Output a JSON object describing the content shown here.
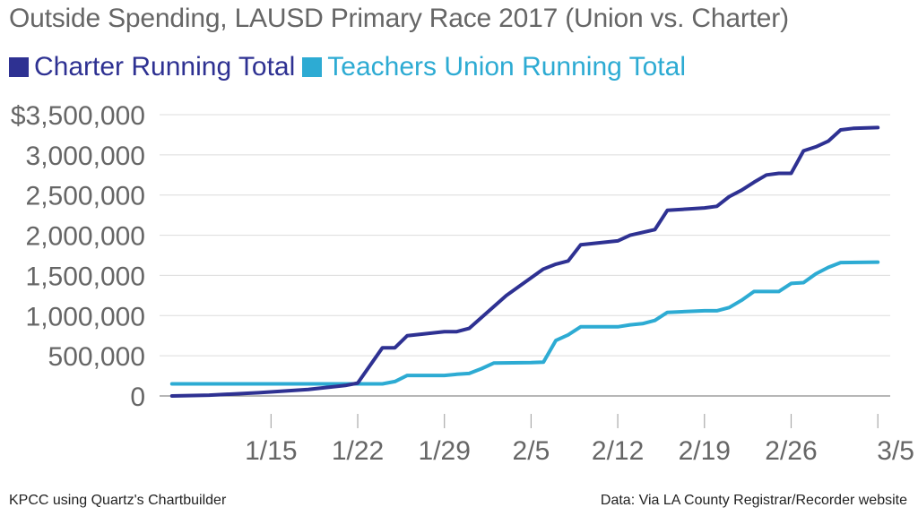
{
  "chart_data": {
    "type": "line",
    "title": "Outside Spending, LAUSD Primary Race 2017 (Union vs. Charter)",
    "xlabel": "",
    "ylabel": "",
    "x_ticks": [
      {
        "label": "1/15",
        "date": "2017-01-15"
      },
      {
        "label": "1/22",
        "date": "2017-01-22"
      },
      {
        "label": "1/29",
        "date": "2017-01-29"
      },
      {
        "label": "2/5",
        "date": "2017-02-05"
      },
      {
        "label": "2/12",
        "date": "2017-02-12"
      },
      {
        "label": "2/19",
        "date": "2017-02-19"
      },
      {
        "label": "2/26",
        "date": "2017-02-26"
      },
      {
        "label": "3/5",
        "date": "2017-03-05"
      }
    ],
    "xlim": [
      "2017-01-06",
      "2017-03-06"
    ],
    "y_ticks": [
      {
        "label": "0",
        "value": 0
      },
      {
        "label": "500,000",
        "value": 500000
      },
      {
        "label": "1,000,000",
        "value": 1000000
      },
      {
        "label": "1,500,000",
        "value": 1500000
      },
      {
        "label": "2,000,000",
        "value": 2000000
      },
      {
        "label": "2,500,000",
        "value": 2500000
      },
      {
        "label": "3,000,000",
        "value": 3000000
      },
      {
        "label": "$3,500,000",
        "value": 3500000
      }
    ],
    "ylim": [
      0,
      3500000
    ],
    "grid": true,
    "legend_position": "top-left",
    "series": [
      {
        "name": "Charter Running Total",
        "color": "#2e3192",
        "points": [
          [
            "2017-01-07",
            0
          ],
          [
            "2017-01-10",
            10000
          ],
          [
            "2017-01-14",
            40000
          ],
          [
            "2017-01-18",
            80000
          ],
          [
            "2017-01-21",
            130000
          ],
          [
            "2017-01-22",
            160000
          ],
          [
            "2017-01-24",
            600000
          ],
          [
            "2017-01-25",
            600000
          ],
          [
            "2017-01-26",
            750000
          ],
          [
            "2017-01-29",
            800000
          ],
          [
            "2017-01-30",
            800000
          ],
          [
            "2017-01-31",
            840000
          ],
          [
            "2017-02-03",
            1250000
          ],
          [
            "2017-02-06",
            1580000
          ],
          [
            "2017-02-07",
            1640000
          ],
          [
            "2017-02-08",
            1680000
          ],
          [
            "2017-02-09",
            1880000
          ],
          [
            "2017-02-12",
            1930000
          ],
          [
            "2017-02-13",
            2000000
          ],
          [
            "2017-02-15",
            2070000
          ],
          [
            "2017-02-16",
            2310000
          ],
          [
            "2017-02-19",
            2340000
          ],
          [
            "2017-02-20",
            2360000
          ],
          [
            "2017-02-21",
            2480000
          ],
          [
            "2017-02-22",
            2560000
          ],
          [
            "2017-02-23",
            2660000
          ],
          [
            "2017-02-24",
            2750000
          ],
          [
            "2017-02-25",
            2770000
          ],
          [
            "2017-02-26",
            2770000
          ],
          [
            "2017-02-27",
            3050000
          ],
          [
            "2017-02-28",
            3100000
          ],
          [
            "2017-03-01",
            3170000
          ],
          [
            "2017-03-02",
            3310000
          ],
          [
            "2017-03-03",
            3330000
          ],
          [
            "2017-03-05",
            3340000
          ]
        ]
      },
      {
        "name": "Teachers Union Running Total",
        "color": "#2dabd3",
        "points": [
          [
            "2017-01-07",
            150000
          ],
          [
            "2017-01-24",
            150000
          ],
          [
            "2017-01-25",
            180000
          ],
          [
            "2017-01-26",
            255000
          ],
          [
            "2017-01-29",
            255000
          ],
          [
            "2017-01-30",
            270000
          ],
          [
            "2017-01-31",
            280000
          ],
          [
            "2017-02-01",
            340000
          ],
          [
            "2017-02-02",
            410000
          ],
          [
            "2017-02-05",
            415000
          ],
          [
            "2017-02-06",
            420000
          ],
          [
            "2017-02-07",
            690000
          ],
          [
            "2017-02-08",
            760000
          ],
          [
            "2017-02-09",
            860000
          ],
          [
            "2017-02-11",
            860000
          ],
          [
            "2017-02-12",
            860000
          ],
          [
            "2017-02-13",
            885000
          ],
          [
            "2017-02-14",
            900000
          ],
          [
            "2017-02-15",
            940000
          ],
          [
            "2017-02-16",
            1040000
          ],
          [
            "2017-02-19",
            1060000
          ],
          [
            "2017-02-20",
            1060000
          ],
          [
            "2017-02-21",
            1100000
          ],
          [
            "2017-02-22",
            1190000
          ],
          [
            "2017-02-23",
            1300000
          ],
          [
            "2017-02-25",
            1300000
          ],
          [
            "2017-02-26",
            1400000
          ],
          [
            "2017-02-27",
            1410000
          ],
          [
            "2017-02-28",
            1520000
          ],
          [
            "2017-03-01",
            1600000
          ],
          [
            "2017-03-02",
            1660000
          ],
          [
            "2017-03-05",
            1665000
          ]
        ]
      }
    ]
  },
  "footer": {
    "credit": "KPCC using Quartz's Chartbuilder",
    "source": "Data: Via LA County Registrar/Recorder website"
  }
}
